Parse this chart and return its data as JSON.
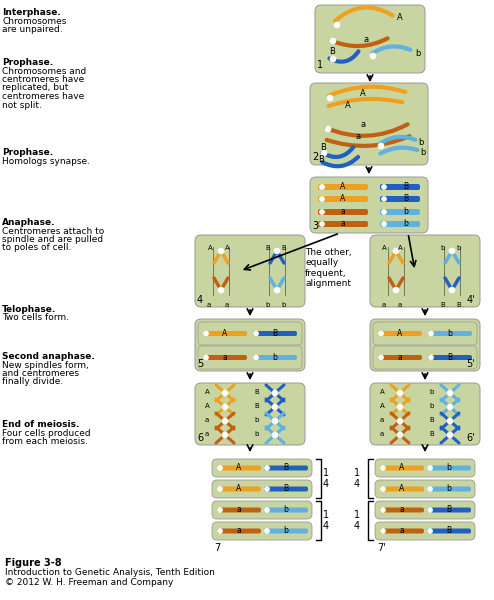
{
  "bg_color": "#ffffff",
  "cell_bg": "#c8d5a0",
  "cell_edge": "#999999",
  "orange_chr": "#f0a020",
  "brown_chr": "#c06010",
  "blue_chr": "#2060c0",
  "light_blue_chr": "#60b0e0",
  "centromere_color": "#ffffff",
  "centromere_edge": "#aaaaaa",
  "figure_label": "Figure 3-8",
  "figure_line2": "Introduction to Genetic Analysis, Tenth Edition",
  "figure_line3": "© 2012 W. H. Freeman and Company",
  "label_color": "#000000",
  "arrow_color": "#000000"
}
